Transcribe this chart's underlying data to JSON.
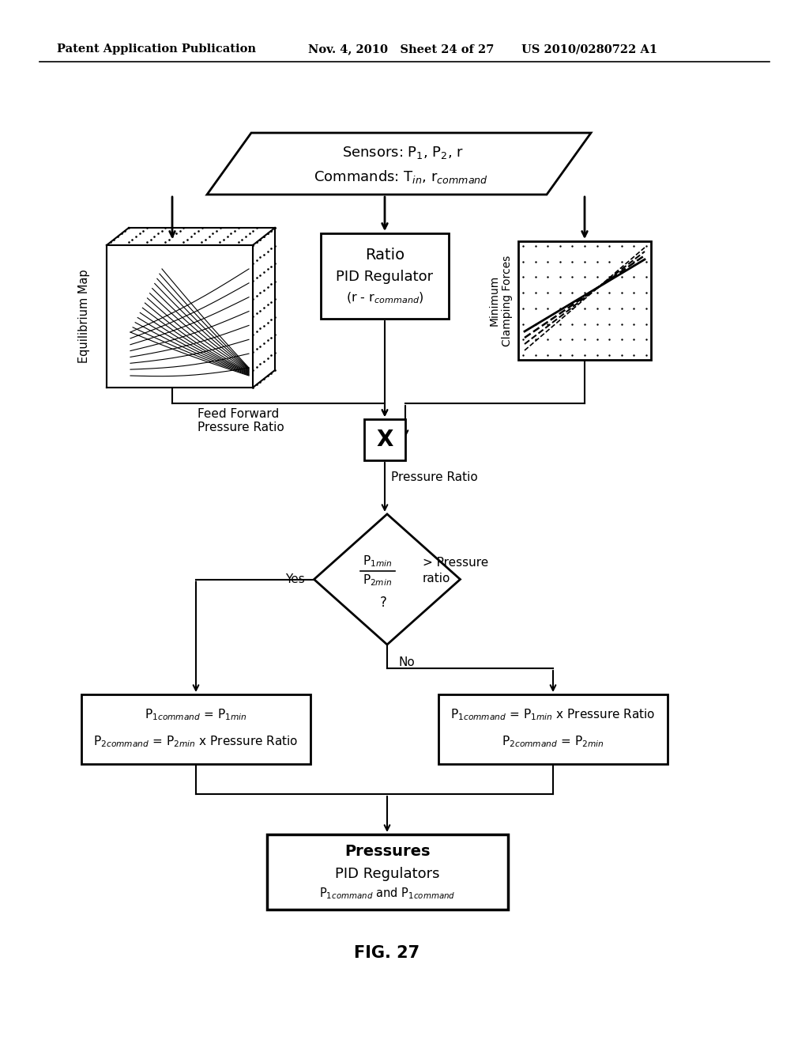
{
  "bg_color": "#ffffff",
  "header_text1": "Patent Application Publication",
  "header_text2": "Nov. 4, 2010   Sheet 24 of 27",
  "header_text3": "US 2010/0280722 A1",
  "fig_label": "FIG. 27",
  "equil_label": "Equilibrium Map",
  "min_clamp_label": "Minimum\nClamping Forces",
  "feed_forward_label": "Feed Forward\nPressure Ratio",
  "pressure_ratio_label": "Pressure Ratio",
  "yes_label": "Yes",
  "no_label": "No"
}
